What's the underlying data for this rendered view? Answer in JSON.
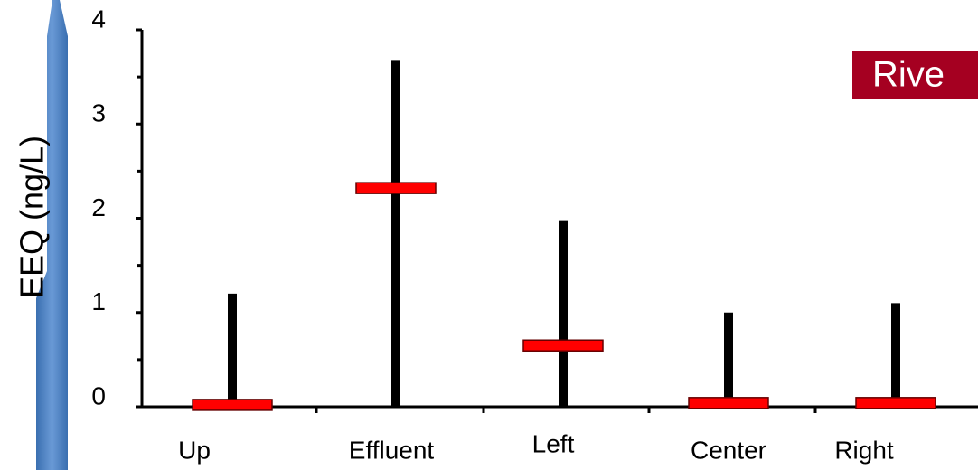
{
  "chart_data": {
    "type": "range",
    "ylabel": "EEQ (ng/L)",
    "annotation": "Rive",
    "categories": [
      "Up",
      "Effluent",
      "Left",
      "Center",
      "Right"
    ],
    "low": [
      0,
      0,
      0,
      0,
      0
    ],
    "high": [
      1.2,
      3.68,
      1.98,
      1.0,
      1.1
    ],
    "median": [
      0.02,
      2.32,
      0.65,
      0.04,
      0.04
    ],
    "range_color": "#000000",
    "median_color": "#ff0000",
    "ylim": [
      0,
      4
    ],
    "yticks": [
      0,
      1,
      2,
      3,
      4
    ],
    "minor_yticks": [
      0.5,
      1.5,
      2.5,
      3.5
    ]
  }
}
